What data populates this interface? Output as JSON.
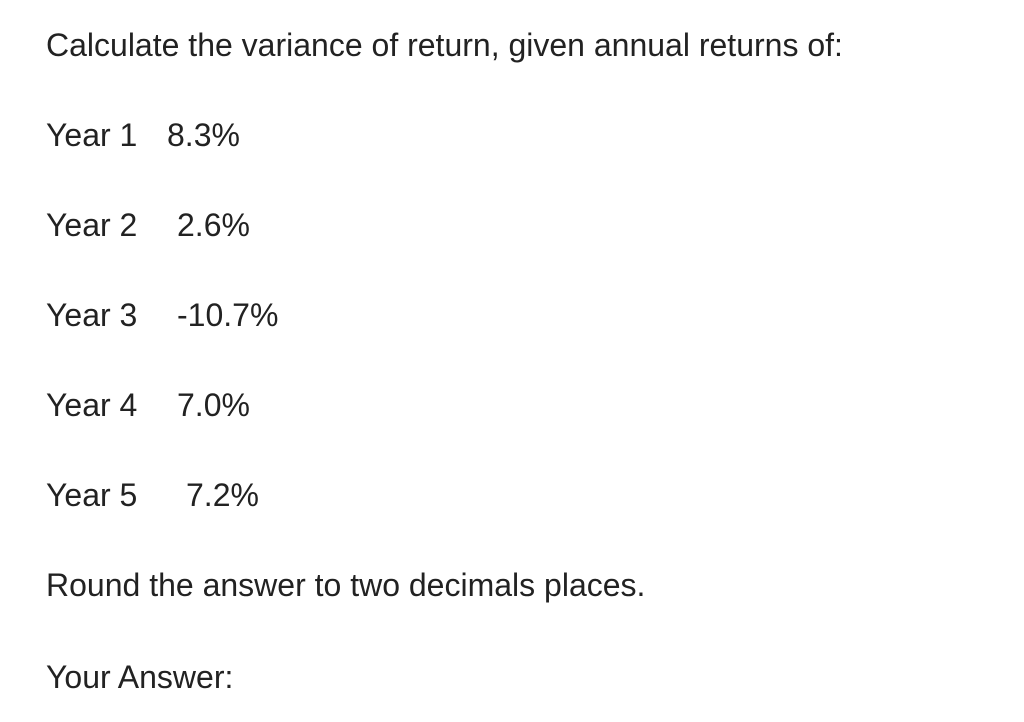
{
  "question": {
    "prompt": "Calculate the variance of return, given annual returns of:",
    "returns": [
      {
        "label": "Year 1",
        "value": "8.3%"
      },
      {
        "label": "Year 2",
        "value": "2.6%"
      },
      {
        "label": "Year 3",
        "value": "-10.7%"
      },
      {
        "label": "Year 4",
        "value": "7.0%"
      },
      {
        "label": "Year 5",
        "value": "7.2%"
      }
    ],
    "instruction": "Round the answer to two decimals places.",
    "answer_label": "Your Answer:"
  }
}
